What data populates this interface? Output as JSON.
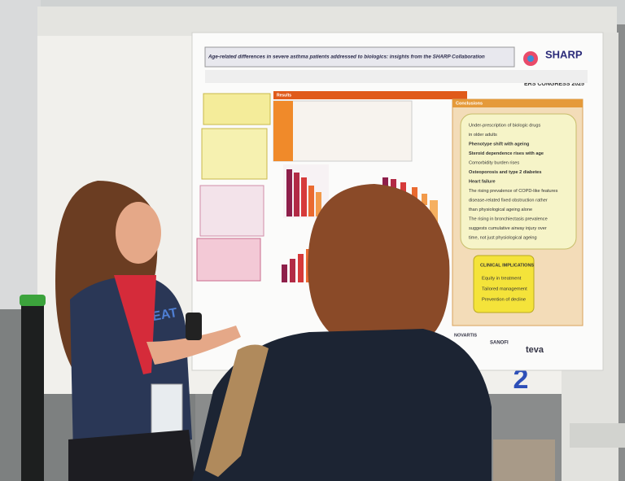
{
  "poster": {
    "title": "Age-related differences in severe asthma patients addressed to biologics: insights from the SHARP Collaboration",
    "logo": "SHARP",
    "congress": "ERS CONGRESS 2025",
    "results_heading": "Results",
    "conclusions_heading": "Conclusions",
    "conclusions": [
      "Under-prescription of biologic drugs",
      "in older adults",
      "Phenotype shift with ageing",
      "Steroid dependence rises with age",
      "Comorbidity burden rises",
      "Osteoporosis and type 2 diabetes",
      "Heart failure",
      "The rising prevalence of COPD-like features",
      "disease-related fixed obstruction rather",
      "than physiological ageing alone",
      "The rising in bronchiectasis prevalence",
      "suggests cumulative airway injury over",
      "time, not just physiological ageing"
    ],
    "implications_heading": "CLINICAL IMPLICATIONS",
    "implications": [
      "Equity in treatment",
      "Tailored management",
      "Prevention of decline"
    ],
    "sponsors": [
      "NOVARTIS",
      "SANOFI",
      "teva"
    ]
  },
  "board_number": "2",
  "shirt_text": "BEAT"
}
